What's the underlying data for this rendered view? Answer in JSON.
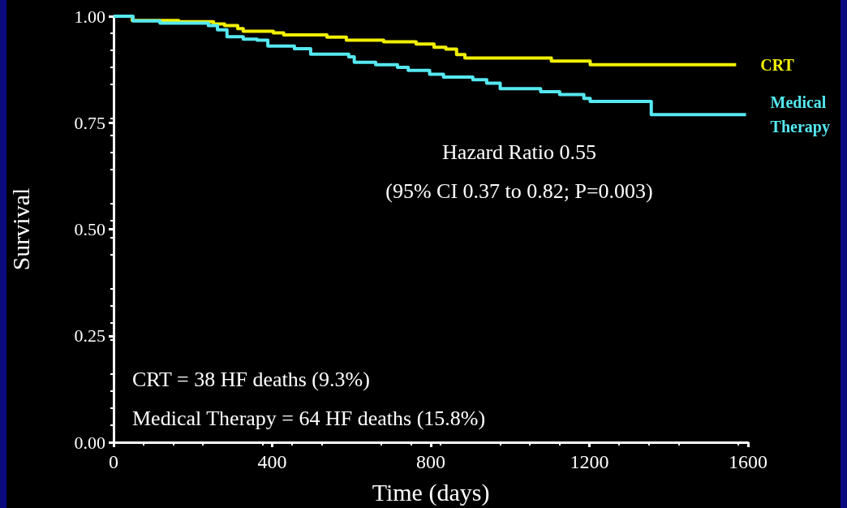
{
  "chart_data": {
    "type": "step",
    "xlabel": "Time (days)",
    "ylabel": "Survival",
    "xlim": [
      0,
      1600
    ],
    "xticks": [
      0,
      400,
      800,
      1200,
      1600
    ],
    "ylim": [
      0,
      1
    ],
    "yticks": [
      {
        "value": 0,
        "label": "0.00"
      },
      {
        "value": 0.25,
        "label": "0.25"
      },
      {
        "value": 0.5,
        "label": "0.50"
      },
      {
        "value": 0.75,
        "label": "0.75"
      },
      {
        "value": 1,
        "label": "1.00"
      }
    ],
    "grid": false,
    "legend": false,
    "marker": "none",
    "line_style": "solid",
    "series": [
      {
        "name": "CRT",
        "color": "#f0f000",
        "x": [
          0,
          47,
          164,
          252,
          280,
          313,
          327,
          403,
          429,
          538,
          587,
          681,
          763,
          808,
          838,
          865,
          886,
          1104,
          1202,
          1570
        ],
        "values": [
          1.0,
          0.99,
          0.987,
          0.982,
          0.978,
          0.971,
          0.965,
          0.961,
          0.956,
          0.951,
          0.944,
          0.94,
          0.935,
          0.927,
          0.923,
          0.91,
          0.902,
          0.895,
          0.886,
          0.886
        ]
      },
      {
        "name": "Medical Therapy",
        "color": "#55e8f0",
        "x": [
          0,
          49,
          117,
          239,
          262,
          286,
          327,
          362,
          389,
          456,
          497,
          593,
          607,
          661,
          716,
          743,
          797,
          832,
          906,
          941,
          975,
          1077,
          1125,
          1186,
          1202,
          1356,
          1595
        ],
        "values": [
          1.0,
          0.989,
          0.984,
          0.978,
          0.968,
          0.952,
          0.946,
          0.944,
          0.93,
          0.924,
          0.911,
          0.905,
          0.892,
          0.886,
          0.88,
          0.873,
          0.864,
          0.857,
          0.851,
          0.843,
          0.83,
          0.823,
          0.816,
          0.807,
          0.8,
          0.769,
          0.769
        ]
      }
    ],
    "annotations": [
      "Hazard Ratio 0.55",
      "(95% CI 0.37 to 0.82; P=0.003)",
      "CRT = 38 HF deaths (9.3%)",
      "Medical Therapy = 64 HF deaths (15.8%)"
    ]
  }
}
